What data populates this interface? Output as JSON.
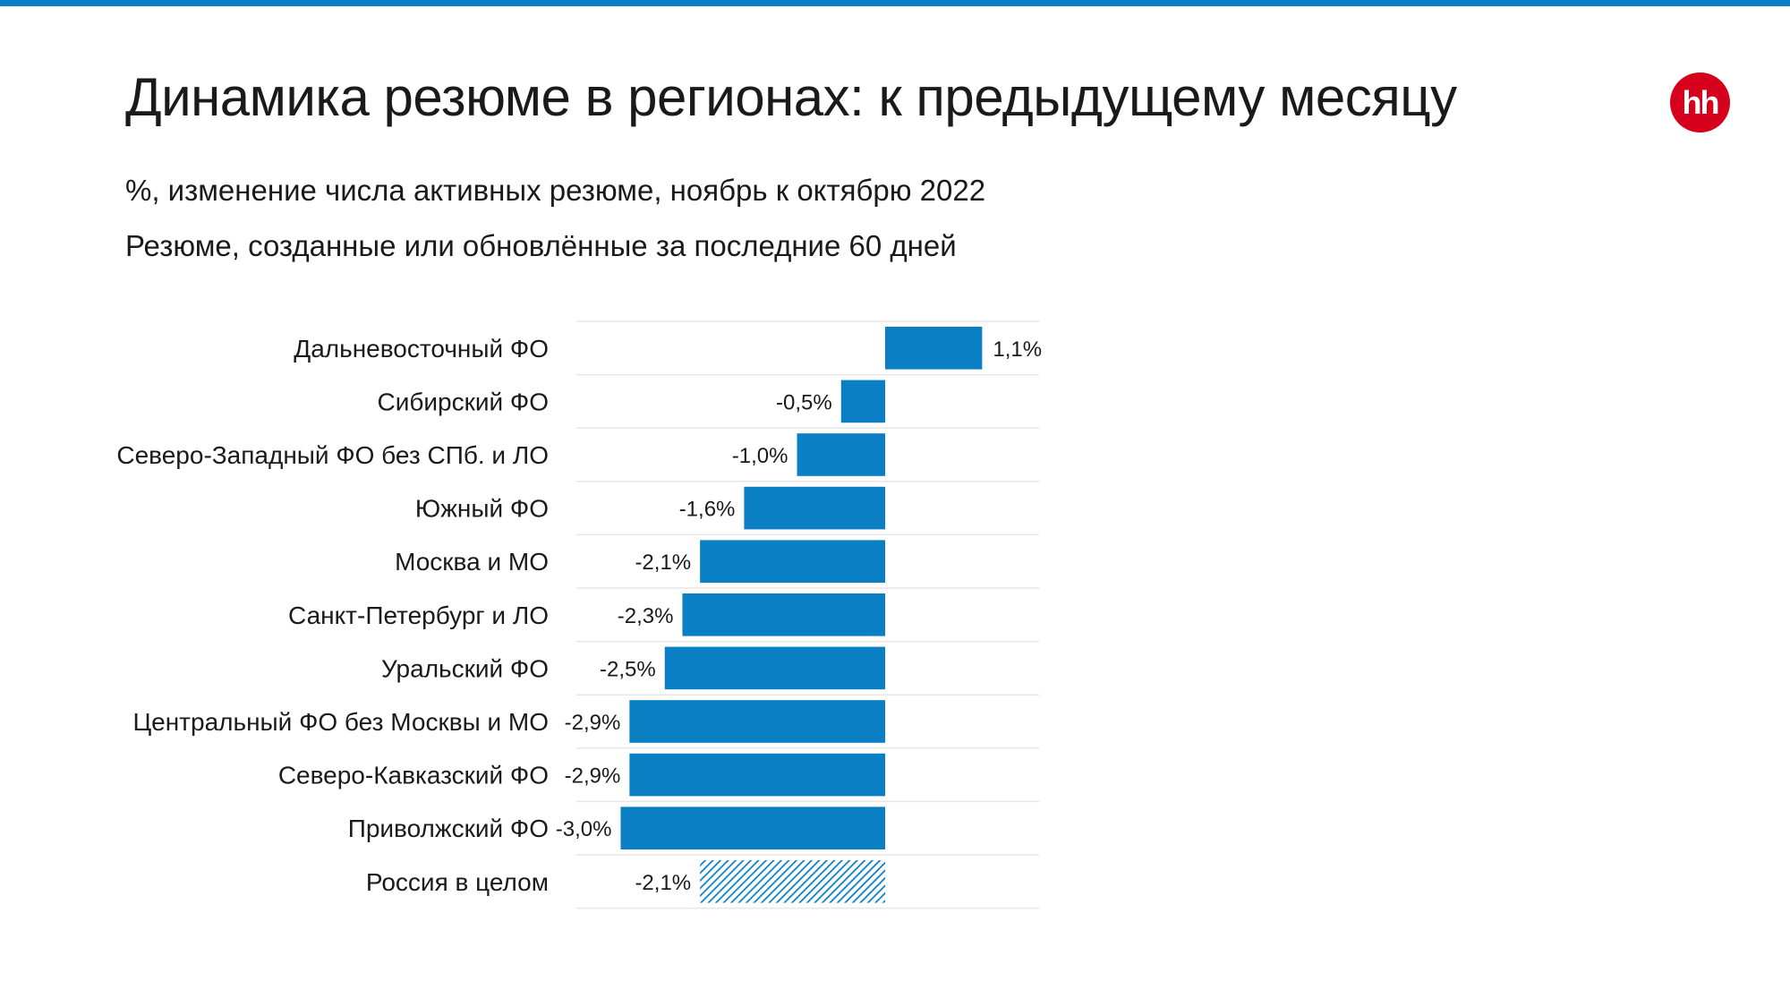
{
  "title": "Динамика резюме в регионах: к предыдущему месяцу",
  "subtitle_1": "%, изменение числа активных резюме, ноябрь к октябрю 2022",
  "subtitle_2": "Резюме, созданные или обновлённые за последние 60 дней",
  "logo_text": "hh",
  "colors": {
    "accent": "#0a7fc4",
    "bar": "#0a7fc4",
    "logo": "#d6001c",
    "grid": "#e6e6e6"
  },
  "chart_data": {
    "type": "bar",
    "orientation": "horizontal",
    "categories": [
      "Дальневосточный ФО",
      "Сибирский ФО",
      "Северо-Западный ФО без СПб. и ЛО",
      "Южный ФО",
      "Москва и МО",
      "Санкт-Петербург и ЛО",
      "Уральский ФО",
      "Центральный ФО без Москвы и МО",
      "Северо-Кавказский ФО",
      "Приволжский ФО",
      "Россия в целом"
    ],
    "values": [
      1.1,
      -0.5,
      -1.0,
      -1.6,
      -2.1,
      -2.3,
      -2.5,
      -2.9,
      -2.9,
      -3.0,
      -2.1
    ],
    "value_labels": [
      "1,1%",
      "-0,5%",
      "-1,0%",
      "-1,6%",
      "-2,1%",
      "-2,3%",
      "-2,5%",
      "-2,9%",
      "-2,9%",
      "-3,0%",
      "-2,1%"
    ],
    "hatched": [
      false,
      false,
      false,
      false,
      false,
      false,
      false,
      false,
      false,
      false,
      true
    ],
    "xlim": [
      -3.5,
      2.5
    ],
    "grid": false
  }
}
